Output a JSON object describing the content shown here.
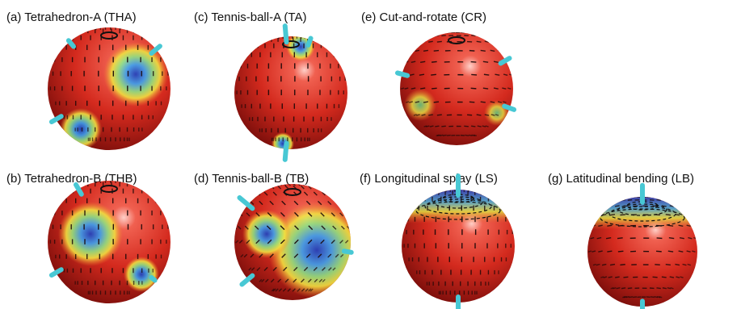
{
  "panels": [
    {
      "label": "(a) Tetrahedron-A (THA)"
    },
    {
      "label": "(b) Tetrahedron-B (THB)"
    },
    {
      "label": "(c) Tennis-ball-A (TA)"
    },
    {
      "label": "(d) Tennis-ball-B (TB)"
    },
    {
      "label": "(e) Cut-and-rotate (CR)"
    },
    {
      "label": "(f)  Longitudinal splay (LS)"
    },
    {
      "label": "(g) Latitudinal bending (LB)"
    }
  ]
}
